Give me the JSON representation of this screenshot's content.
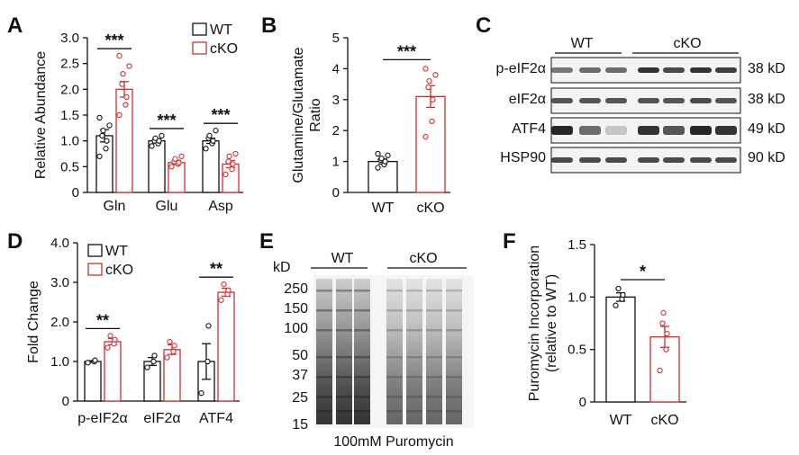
{
  "colors": {
    "wt": "#111111",
    "cko": "#d62d2d"
  },
  "panels": {
    "A": {
      "letter": "A"
    },
    "B": {
      "letter": "B"
    },
    "C": {
      "letter": "C"
    },
    "D": {
      "letter": "D"
    },
    "E": {
      "letter": "E"
    },
    "F": {
      "letter": "F"
    }
  },
  "chart_data": [
    {
      "panel": "A",
      "type": "bar",
      "categories": [
        "Gln",
        "Glu",
        "Asp"
      ],
      "series": [
        {
          "name": "WT",
          "values": [
            1.1,
            1.0,
            1.0
          ],
          "sem": [
            0.12,
            0.04,
            0.05
          ],
          "points": [
            [
              0.7,
              0.85,
              1.0,
              1.1,
              1.2,
              1.3,
              1.45
            ],
            [
              0.9,
              0.95,
              1.0,
              1.0,
              1.05,
              1.1
            ],
            [
              0.85,
              0.95,
              1.0,
              1.05,
              1.1,
              1.2
            ]
          ]
        },
        {
          "name": "cKO",
          "values": [
            2.0,
            0.58,
            0.55
          ],
          "sem": [
            0.15,
            0.04,
            0.07
          ],
          "points": [
            [
              1.5,
              1.7,
              1.85,
              2.1,
              2.3,
              2.45,
              2.65
            ],
            [
              0.5,
              0.55,
              0.58,
              0.6,
              0.65,
              0.7
            ],
            [
              0.35,
              0.45,
              0.55,
              0.6,
              0.7,
              0.75
            ]
          ]
        }
      ],
      "significance": [
        "***",
        "***",
        "***"
      ],
      "ylabel": "Relative Abundance",
      "ylim": [
        0,
        3.0
      ],
      "yticks": [
        "0",
        "0.5",
        "1.0",
        "1.5",
        "2.0",
        "2.5",
        "3.0"
      ],
      "legend": [
        "WT",
        "cKO"
      ],
      "legend_position": "top-right"
    },
    {
      "panel": "B",
      "type": "bar",
      "categories": [
        "WT",
        "cKO"
      ],
      "series": [
        {
          "name": "Ratio",
          "values": [
            1.0,
            3.1
          ],
          "sem": [
            0.08,
            0.35
          ],
          "points": [
            [
              0.8,
              0.9,
              1.0,
              1.05,
              1.1,
              1.2,
              1.25
            ],
            [
              1.8,
              2.3,
              3.0,
              3.4,
              3.6,
              3.8,
              4.0
            ]
          ]
        }
      ],
      "significance": "***",
      "ylabel_lines": [
        "Glutamine/Glutamate",
        "Ratio"
      ],
      "ylim": [
        0,
        5
      ],
      "yticks": [
        "0",
        "1",
        "2",
        "3",
        "4",
        "5"
      ]
    },
    {
      "panel": "D",
      "type": "bar",
      "categories": [
        "p-eIF2α",
        "eIF2α",
        "ATF4"
      ],
      "series": [
        {
          "name": "WT",
          "values": [
            1.0,
            1.0,
            1.0
          ],
          "sem": [
            0.02,
            0.1,
            0.45
          ],
          "points": [
            [
              0.97,
              1.0,
              1.03
            ],
            [
              0.85,
              1.0,
              1.15
            ],
            [
              0.2,
              1.0,
              1.9
            ]
          ]
        },
        {
          "name": "cKO",
          "values": [
            1.5,
            1.3,
            2.75
          ],
          "sem": [
            0.08,
            0.12,
            0.1
          ],
          "points": [
            [
              1.35,
              1.45,
              1.55,
              1.65
            ],
            [
              1.1,
              1.25,
              1.4,
              1.5
            ],
            [
              2.55,
              2.7,
              2.8,
              2.95
            ]
          ]
        }
      ],
      "significance": [
        "**",
        "",
        "**"
      ],
      "ylabel": "Fold Change",
      "ylim": [
        0,
        4.0
      ],
      "yticks": [
        "0",
        "1.0",
        "2.0",
        "3.0",
        "4.0"
      ],
      "legend": [
        "WT",
        "cKO"
      ],
      "legend_position": "top-left"
    },
    {
      "panel": "F",
      "type": "bar",
      "categories": [
        "WT",
        "cKO"
      ],
      "series": [
        {
          "name": "Incorporation",
          "values": [
            1.0,
            0.62
          ],
          "sem": [
            0.04,
            0.1
          ],
          "points": [
            [
              0.92,
              0.98,
              1.02,
              1.08
            ],
            [
              0.3,
              0.5,
              0.65,
              0.75,
              0.85
            ]
          ]
        }
      ],
      "significance": "*",
      "ylabel_lines": [
        "Puromycin Incorporation",
        "(relative to WT)"
      ],
      "ylim": [
        0,
        1.5
      ],
      "yticks": [
        "0",
        "0.5",
        "1.0",
        "1.5"
      ]
    }
  ],
  "blot_C": {
    "groups": [
      "WT",
      "cKO"
    ],
    "rows": [
      {
        "protein": "p-eIF2α",
        "size": "38 kD"
      },
      {
        "protein": "eIF2α",
        "size": "38 kD"
      },
      {
        "protein": "ATF4",
        "size": "49 kD"
      },
      {
        "protein": "HSP90",
        "size": "90 kD"
      }
    ]
  },
  "blot_E": {
    "groups": [
      "WT",
      "cKO"
    ],
    "unit": "kD",
    "markers": [
      "250",
      "150",
      "100",
      "50",
      "37",
      "25",
      "15"
    ],
    "caption": "100mM Puromycin"
  }
}
